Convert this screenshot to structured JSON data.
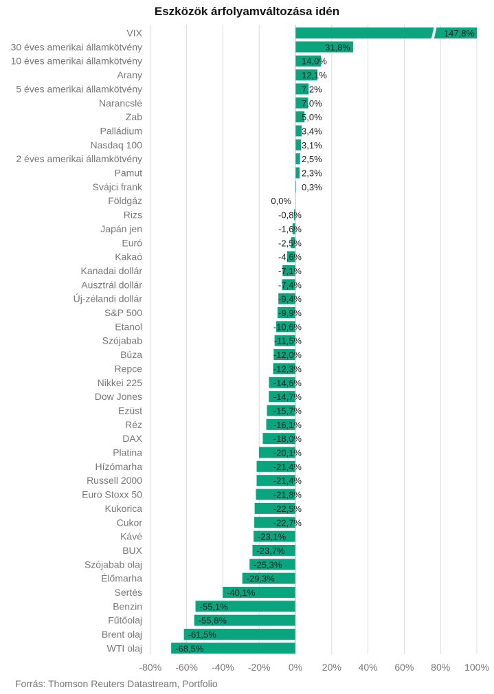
{
  "chart_data": {
    "type": "bar",
    "orientation": "horizontal",
    "title": "Eszközök árfolyamváltozása idén",
    "source": "Forrás: Thomson Reuters Datastream, Portfolio",
    "xlim": [
      -80,
      100
    ],
    "x_ticks": [
      -80,
      -60,
      -40,
      -20,
      0,
      20,
      40,
      60,
      80,
      100
    ],
    "x_tick_labels": [
      "-80%",
      "-60%",
      "-40%",
      "-20%",
      "0%",
      "20%",
      "40%",
      "60%",
      "80%",
      "100%"
    ],
    "grid": true,
    "bar_color": "#0aa57f",
    "axis_break": {
      "category": "VIX",
      "shown_at": 100
    },
    "categories": [
      "VIX",
      "30 éves amerikai államkötvény",
      "10 éves amerikai államkötvény",
      "Arany",
      "5 éves amerikai államkötvény",
      "Narancslé",
      "Zab",
      "Palládium",
      "Nasdaq 100",
      "2 éves amerikai államkötvény",
      "Pamut",
      "Svájci frank",
      "Földgáz",
      "Rizs",
      "Japán jen",
      "Euró",
      "Kakaó",
      "Kanadai dollár",
      "Ausztrál dollár",
      "Új-zélandi dollár",
      "S&P 500",
      "Etanol",
      "Szójabab",
      "Búza",
      "Repce",
      "Nikkei 225",
      "Dow Jones",
      "Ezüst",
      "Réz",
      "DAX",
      "Platina",
      "Hízómarha",
      "Russell 2000",
      "Euro Stoxx 50",
      "Kukorica",
      "Cukor",
      "Kávé",
      "BUX",
      "Szójabab olaj",
      "Élőmarha",
      "Sertés",
      "Benzin",
      "Fűtőolaj",
      "Brent olaj",
      "WTI olaj"
    ],
    "values": [
      147.8,
      31.8,
      14.0,
      12.1,
      7.2,
      7.0,
      5.0,
      3.4,
      3.1,
      2.5,
      2.3,
      0.3,
      0.0,
      -0.8,
      -1.6,
      -2.5,
      -4.6,
      -7.1,
      -7.4,
      -9.4,
      -9.9,
      -10.6,
      -11.5,
      -12.0,
      -12.3,
      -14.6,
      -14.7,
      -15.7,
      -16.1,
      -18.0,
      -20.1,
      -21.4,
      -21.4,
      -21.8,
      -22.5,
      -22.7,
      -23.1,
      -23.7,
      -25.3,
      -29.3,
      -40.1,
      -55.1,
      -55.8,
      -61.5,
      -68.5
    ],
    "value_labels": [
      "147,8%",
      "31,8%",
      "14,0%",
      "12,1%",
      "7,2%",
      "7,0%",
      "5,0%",
      "3,4%",
      "3,1%",
      "2,5%",
      "2,3%",
      "0,3%",
      "0,0%",
      "-0,8%",
      "-1,6%",
      "-2,5%",
      "-4,6%",
      "-7,1%",
      "-7,4%",
      "-9,4%",
      "-9,9%",
      "-10,6%",
      "-11,5%",
      "-12,0%",
      "-12,3%",
      "-14,6%",
      "-14,7%",
      "-15,7%",
      "-16,1%",
      "-18,0%",
      "-20,1%",
      "-21,4%",
      "-21,4%",
      "-21,8%",
      "-22,5%",
      "-22,7%",
      "-23,1%",
      "-23,7%",
      "-25,3%",
      "-29,3%",
      "-40,1%",
      "-55,1%",
      "-55,8%",
      "-61,5%",
      "-68,5%"
    ]
  }
}
